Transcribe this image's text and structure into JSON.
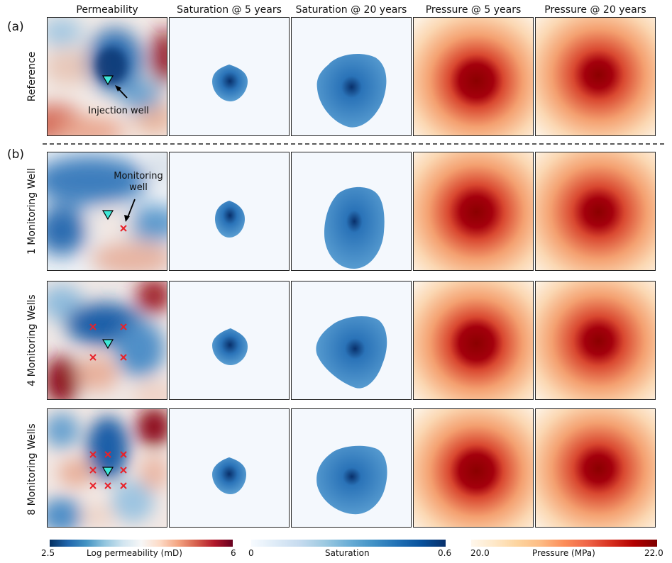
{
  "section_tags": [
    "(a)",
    "(b)"
  ],
  "columns": [
    "Permeability",
    "Saturation @ 5 years",
    "Saturation @ 20 years",
    "Pressure @ 5 years",
    "Pressure @ 20 years"
  ],
  "rows": [
    {
      "label": "Reference",
      "monitoring_wells": 0
    },
    {
      "label": "1 Monitoring Well",
      "monitoring_wells": 1
    },
    {
      "label": "4 Monitoring Wells",
      "monitoring_wells": 4
    },
    {
      "label": "8 Monitoring Wells",
      "monitoring_wells": 8
    }
  ],
  "annotations": {
    "injection_well": "Injection well",
    "monitoring_well": "Monitoring well"
  },
  "colorbars": [
    {
      "label": "Log permeability (mD)",
      "min": "2.5",
      "max": "6",
      "colormap": "RdBu_r"
    },
    {
      "label": "Saturation",
      "min": "0",
      "max": "0.6",
      "colormap": "Blues"
    },
    {
      "label": "Pressure (MPa)",
      "min": "20.0",
      "max": "22.0",
      "colormap": "OrRd"
    }
  ],
  "colors": {
    "injection_well": "#3ee8d8",
    "monitoring_well": "#e8222a",
    "sat_high": "#08306b",
    "sat_mid": "#4a90c8",
    "pressure_high": "#8b0000",
    "perm_low": "#1f5fa8",
    "perm_high": "#8e0f1f"
  }
}
